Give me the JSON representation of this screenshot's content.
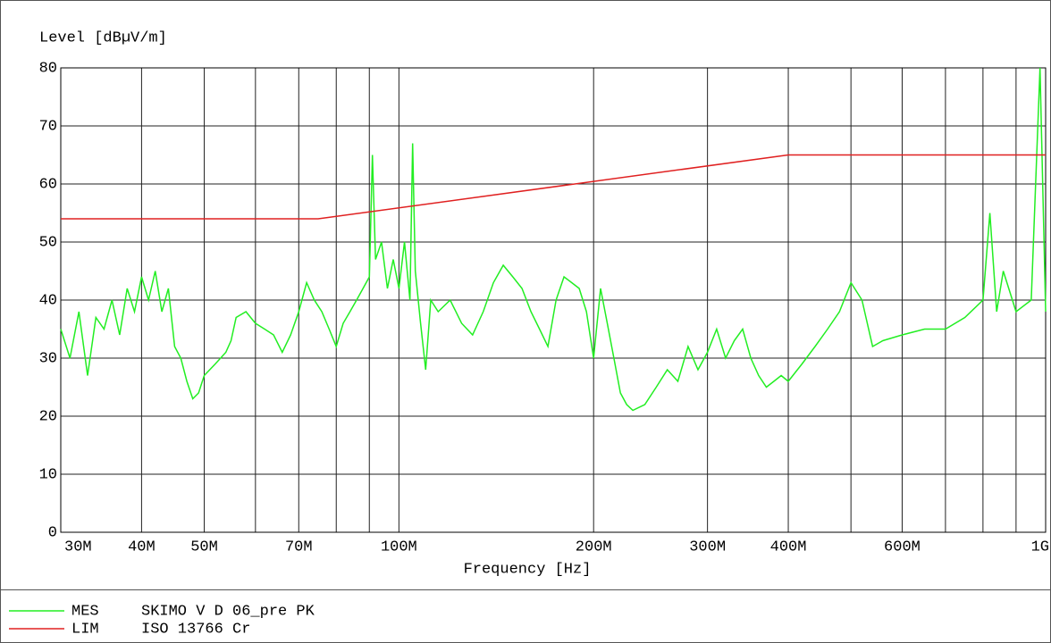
{
  "chart_data": {
    "type": "line",
    "ylabel": "Level [dBµV/m]",
    "xlabel": "Frequency [Hz]",
    "xscale": "log",
    "xlim": [
      30000000,
      1000000000
    ],
    "ylim": [
      0,
      80
    ],
    "yticks": [
      0,
      10,
      20,
      30,
      40,
      50,
      60,
      70,
      80
    ],
    "xticks": [
      {
        "value": 30000000,
        "label": "30M"
      },
      {
        "value": 40000000,
        "label": "40M"
      },
      {
        "value": 50000000,
        "label": "50M"
      },
      {
        "value": 70000000,
        "label": "70M"
      },
      {
        "value": 100000000,
        "label": "100M"
      },
      {
        "value": 200000000,
        "label": "200M"
      },
      {
        "value": 300000000,
        "label": "300M"
      },
      {
        "value": 400000000,
        "label": "400M"
      },
      {
        "value": 600000000,
        "label": "600M"
      },
      {
        "value": 1000000000,
        "label": "1G"
      }
    ],
    "xminor": [
      60000000,
      80000000,
      90000000,
      500000000,
      700000000,
      800000000,
      900000000
    ],
    "grid": true,
    "series": [
      {
        "name": "MES",
        "description": "SKIMO V D 06_pre PK",
        "color": "#22ee22",
        "x": [
          30000000,
          31000000,
          32000000,
          33000000,
          34000000,
          35000000,
          36000000,
          37000000,
          38000000,
          39000000,
          40000000,
          41000000,
          42000000,
          43000000,
          44000000,
          45000000,
          46000000,
          47000000,
          48000000,
          49000000,
          50000000,
          52000000,
          54000000,
          55000000,
          56000000,
          58000000,
          60000000,
          62000000,
          64000000,
          66000000,
          68000000,
          70000000,
          72000000,
          74000000,
          76000000,
          78000000,
          80000000,
          82000000,
          84000000,
          86000000,
          88000000,
          90000000,
          91000000,
          92000000,
          94000000,
          96000000,
          98000000,
          100000000,
          102000000,
          104000000,
          105000000,
          106000000,
          108000000,
          110000000,
          112000000,
          115000000,
          120000000,
          125000000,
          130000000,
          135000000,
          140000000,
          145000000,
          150000000,
          155000000,
          160000000,
          165000000,
          170000000,
          175000000,
          180000000,
          185000000,
          190000000,
          195000000,
          200000000,
          205000000,
          210000000,
          215000000,
          220000000,
          225000000,
          230000000,
          240000000,
          250000000,
          260000000,
          270000000,
          280000000,
          290000000,
          300000000,
          310000000,
          320000000,
          330000000,
          340000000,
          350000000,
          360000000,
          370000000,
          380000000,
          390000000,
          400000000,
          420000000,
          440000000,
          460000000,
          480000000,
          500000000,
          520000000,
          540000000,
          560000000,
          600000000,
          650000000,
          700000000,
          750000000,
          800000000,
          820000000,
          840000000,
          860000000,
          900000000,
          950000000,
          980000000,
          1000000000
        ],
        "values": [
          35,
          30,
          38,
          27,
          37,
          35,
          40,
          34,
          42,
          38,
          44,
          40,
          45,
          38,
          42,
          32,
          30,
          26,
          23,
          24,
          27,
          29,
          31,
          33,
          37,
          38,
          36,
          35,
          34,
          31,
          34,
          38,
          43,
          40,
          38,
          35,
          32,
          36,
          38,
          40,
          42,
          44,
          65,
          47,
          50,
          42,
          47,
          42,
          50,
          40,
          67,
          45,
          36,
          28,
          40,
          38,
          40,
          36,
          34,
          38,
          43,
          46,
          44,
          42,
          38,
          35,
          32,
          40,
          44,
          43,
          42,
          38,
          30,
          42,
          36,
          30,
          24,
          22,
          21,
          22,
          25,
          28,
          26,
          32,
          28,
          31,
          35,
          30,
          33,
          35,
          30,
          27,
          25,
          26,
          27,
          26,
          29,
          32,
          35,
          38,
          43,
          40,
          32,
          33,
          34,
          35,
          35,
          37,
          40,
          55,
          38,
          45,
          38,
          40,
          80,
          38
        ]
      },
      {
        "name": "LIM",
        "description": "ISO 13766 Cr",
        "color": "#e02020",
        "x": [
          30000000,
          75000000,
          400000000,
          1000000000
        ],
        "values": [
          54,
          54,
          65,
          65
        ]
      }
    ]
  }
}
